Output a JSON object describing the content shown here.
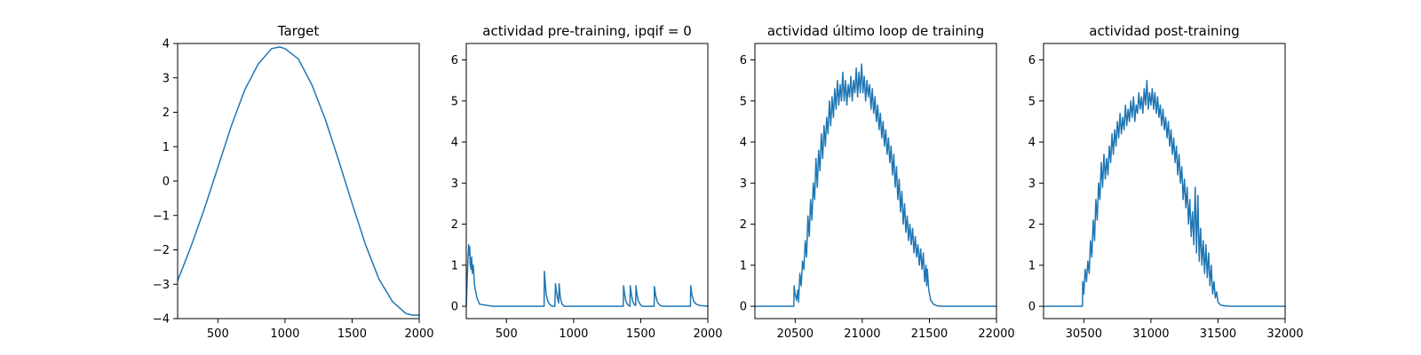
{
  "figure": {
    "background": "#ffffff",
    "line_color": "#1f77b4"
  },
  "chart_data": [
    {
      "type": "line",
      "title": "Target",
      "xlabel": "",
      "ylabel": "",
      "xlim": [
        200,
        2000
      ],
      "ylim": [
        -4,
        4
      ],
      "xticks": [
        500,
        1000,
        1500,
        2000
      ],
      "yticks": [
        -4,
        -3,
        -2,
        -1,
        0,
        1,
        2,
        3,
        4
      ],
      "grid": false,
      "series": [
        {
          "color": "#1f77b4",
          "x": [
            200,
            300,
            400,
            500,
            600,
            700,
            800,
            900,
            960,
            1000,
            1100,
            1200,
            1300,
            1400,
            1500,
            1600,
            1700,
            1800,
            1900,
            1950,
            2000
          ],
          "y": [
            -2.9,
            -1.9,
            -0.8,
            0.4,
            1.6,
            2.65,
            3.4,
            3.85,
            3.9,
            3.85,
            3.55,
            2.8,
            1.8,
            0.6,
            -0.65,
            -1.85,
            -2.85,
            -3.5,
            -3.85,
            -3.9,
            -3.9
          ]
        }
      ]
    },
    {
      "type": "line",
      "title": "actividad pre-training, ipqif = 0",
      "xlabel": "",
      "ylabel": "",
      "xlim": [
        200,
        2000
      ],
      "ylim": [
        -0.3,
        6.4
      ],
      "xticks": [
        500,
        1000,
        1500,
        2000
      ],
      "yticks": [
        0,
        1,
        2,
        3,
        4,
        5,
        6
      ],
      "grid": false,
      "series": [
        {
          "color": "#1f77b4",
          "x": [
            200,
            205,
            212,
            218,
            222,
            226,
            230,
            236,
            240,
            246,
            252,
            262,
            280,
            300,
            400,
            600,
            780,
            782,
            788,
            795,
            805,
            820,
            840,
            860,
            865,
            872,
            880,
            888,
            892,
            898,
            905,
            915,
            930,
            1000,
            1200,
            1370,
            1372,
            1380,
            1390,
            1405,
            1420,
            1422,
            1430,
            1440,
            1455,
            1462,
            1465,
            1472,
            1480,
            1495,
            1510,
            1600,
            1602,
            1612,
            1625,
            1640,
            1660,
            1870,
            1873,
            1880,
            1895,
            1915,
            1940,
            1970,
            2000
          ],
          "y": [
            0,
            0.5,
            1.1,
            1.5,
            1.25,
            1.45,
            1.0,
            0.9,
            1.2,
            0.8,
            1.0,
            0.5,
            0.2,
            0.05,
            0,
            0,
            0,
            0.85,
            0.6,
            0.3,
            0.15,
            0.05,
            0,
            0,
            0.55,
            0.35,
            0.2,
            0.08,
            0.55,
            0.3,
            0.15,
            0.05,
            0,
            0,
            0,
            0,
            0.5,
            0.3,
            0.12,
            0.03,
            0,
            0.5,
            0.3,
            0.12,
            0.03,
            0.02,
            0.5,
            0.3,
            0.15,
            0.05,
            0,
            0,
            0.48,
            0.25,
            0.1,
            0.03,
            0,
            0,
            0.5,
            0.3,
            0.12,
            0.05,
            0.02,
            0.01,
            0
          ]
        }
      ]
    },
    {
      "type": "line",
      "title": "actividad último loop de training",
      "xlabel": "",
      "ylabel": "",
      "xlim": [
        20200,
        22000
      ],
      "ylim": [
        -0.3,
        6.4
      ],
      "xticks": [
        20500,
        21000,
        21500,
        22000
      ],
      "yticks": [
        0,
        1,
        2,
        3,
        4,
        5,
        6
      ],
      "grid": false,
      "series": [
        {
          "color": "#1f77b4",
          "x": [
            20200,
            20400,
            20490,
            20492,
            20500,
            20510,
            20520,
            20525,
            20535,
            20545,
            20555,
            20565,
            20575,
            20585,
            20595,
            20605,
            20615,
            20625,
            20635,
            20645,
            20655,
            20665,
            20675,
            20685,
            20695,
            20705,
            20715,
            20725,
            20735,
            20745,
            20755,
            20765,
            20775,
            20785,
            20795,
            20805,
            20815,
            20825,
            20835,
            20845,
            20855,
            20865,
            20875,
            20885,
            20895,
            20905,
            20915,
            20925,
            20935,
            20945,
            20955,
            20965,
            20975,
            20985,
            20995,
            21005,
            21015,
            21025,
            21035,
            21045,
            21055,
            21065,
            21075,
            21085,
            21095,
            21105,
            21115,
            21125,
            21135,
            21145,
            21155,
            21165,
            21175,
            21185,
            21195,
            21205,
            21215,
            21225,
            21235,
            21245,
            21255,
            21265,
            21275,
            21285,
            21295,
            21305,
            21315,
            21325,
            21335,
            21345,
            21355,
            21365,
            21375,
            21385,
            21395,
            21405,
            21415,
            21425,
            21435,
            21445,
            21455,
            21465,
            21475,
            21480,
            21485,
            21495,
            21510,
            21530,
            21560,
            21600,
            21800,
            22000
          ],
          "y": [
            0,
            0,
            0,
            0.5,
            0.3,
            0.15,
            0.4,
            0.1,
            0.8,
            0.5,
            1.1,
            0.9,
            1.6,
            1.2,
            2.2,
            1.7,
            2.6,
            2.1,
            3.0,
            2.6,
            3.6,
            2.9,
            3.8,
            3.3,
            4.2,
            3.6,
            4.4,
            3.9,
            4.6,
            4.2,
            5.0,
            4.4,
            5.1,
            4.6,
            5.3,
            4.8,
            5.5,
            4.9,
            5.4,
            5.0,
            5.7,
            5.0,
            5.5,
            4.9,
            5.4,
            5.1,
            5.6,
            5.0,
            5.5,
            5.2,
            5.8,
            5.1,
            5.7,
            5.2,
            5.9,
            5.2,
            5.6,
            5.0,
            5.5,
            5.1,
            5.4,
            4.8,
            5.3,
            4.7,
            5.1,
            4.5,
            4.9,
            4.3,
            4.7,
            4.1,
            4.5,
            3.9,
            4.3,
            3.7,
            4.1,
            3.5,
            3.9,
            3.2,
            3.7,
            2.9,
            3.4,
            2.6,
            3.1,
            2.3,
            2.8,
            2.0,
            2.5,
            1.8,
            2.2,
            1.6,
            2.0,
            1.5,
            1.9,
            1.3,
            1.7,
            1.2,
            1.5,
            1.0,
            1.4,
            0.9,
            1.3,
            0.6,
            1.0,
            0.5,
            0.9,
            0.4,
            0.15,
            0.05,
            0.01,
            0,
            0,
            0
          ]
        }
      ]
    },
    {
      "type": "line",
      "title": "actividad post-training",
      "xlabel": "",
      "ylabel": "",
      "xlim": [
        30200,
        32000
      ],
      "ylim": [
        -0.3,
        6.4
      ],
      "xticks": [
        30500,
        31000,
        31500,
        32000
      ],
      "yticks": [
        0,
        1,
        2,
        3,
        4,
        5,
        6
      ],
      "grid": false,
      "series": [
        {
          "color": "#1f77b4",
          "x": [
            30200,
            30400,
            30490,
            30492,
            30500,
            30510,
            30520,
            30530,
            30540,
            30550,
            30560,
            30570,
            30580,
            30590,
            30600,
            30610,
            30620,
            30630,
            30640,
            30650,
            30660,
            30670,
            30680,
            30690,
            30700,
            30710,
            30720,
            30730,
            30740,
            30750,
            30760,
            30770,
            30780,
            30790,
            30800,
            30810,
            30820,
            30830,
            30840,
            30850,
            30860,
            30870,
            30880,
            30890,
            30900,
            30910,
            30920,
            30930,
            30940,
            30950,
            30960,
            30970,
            30980,
            30990,
            31000,
            31010,
            31020,
            31030,
            31040,
            31050,
            31060,
            31070,
            31080,
            31090,
            31100,
            31110,
            31120,
            31130,
            31140,
            31150,
            31160,
            31170,
            31180,
            31190,
            31200,
            31210,
            31220,
            31230,
            31240,
            31250,
            31260,
            31270,
            31280,
            31290,
            31300,
            31310,
            31320,
            31330,
            31340,
            31350,
            31360,
            31370,
            31380,
            31390,
            31400,
            31410,
            31420,
            31430,
            31440,
            31450,
            31460,
            31470,
            31480,
            31490,
            31500,
            31520,
            31550,
            31600,
            31800,
            32000
          ],
          "y": [
            0,
            0,
            0,
            0.6,
            0.3,
            0.9,
            0.6,
            1.1,
            0.8,
            1.6,
            1.2,
            2.1,
            1.6,
            2.6,
            2.1,
            3.0,
            2.6,
            3.5,
            2.9,
            3.7,
            3.1,
            3.6,
            3.2,
            3.9,
            3.5,
            4.2,
            3.7,
            4.3,
            3.9,
            4.5,
            4.1,
            4.7,
            4.2,
            4.6,
            4.3,
            4.9,
            4.4,
            4.8,
            4.5,
            5.0,
            4.6,
            5.1,
            4.5,
            4.9,
            4.7,
            5.2,
            4.8,
            5.1,
            4.7,
            5.3,
            4.9,
            5.5,
            4.8,
            5.2,
            4.9,
            5.3,
            4.8,
            5.2,
            4.7,
            5.1,
            4.6,
            4.9,
            4.4,
            4.8,
            4.3,
            4.6,
            4.1,
            4.5,
            3.9,
            4.3,
            3.7,
            4.1,
            3.5,
            3.9,
            3.2,
            3.7,
            3.0,
            3.4,
            2.6,
            3.1,
            2.4,
            2.9,
            2.0,
            2.6,
            1.7,
            2.3,
            1.5,
            2.9,
            1.3,
            2.7,
            1.1,
            1.9,
            1.0,
            1.6,
            0.8,
            1.5,
            0.7,
            1.3,
            0.5,
            1.0,
            0.3,
            0.6,
            0.2,
            0.35,
            0.1,
            0.03,
            0.01,
            0,
            0,
            0
          ]
        }
      ]
    }
  ]
}
